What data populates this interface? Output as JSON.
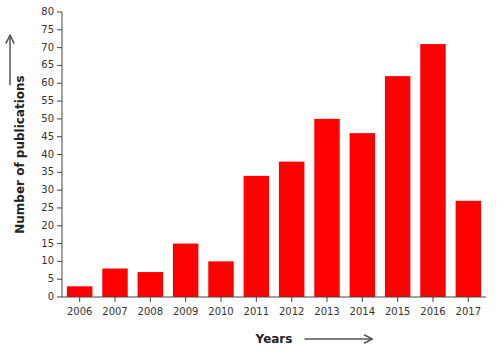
{
  "chart_data": {
    "type": "bar",
    "categories": [
      "2006",
      "2007",
      "2008",
      "2009",
      "2010",
      "2011",
      "2012",
      "2013",
      "2014",
      "2015",
      "2016",
      "2017"
    ],
    "values": [
      3,
      8,
      7,
      15,
      10,
      34,
      38,
      50,
      46,
      62,
      71,
      27
    ],
    "color": "#FF0000",
    "xlabel": "Years",
    "ylabel": "Number of publications",
    "ylim": [
      0,
      80
    ],
    "yticks": [
      0,
      5,
      10,
      15,
      20,
      25,
      30,
      35,
      40,
      45,
      50,
      55,
      60,
      65,
      70,
      75,
      80
    ],
    "grid": false
  }
}
